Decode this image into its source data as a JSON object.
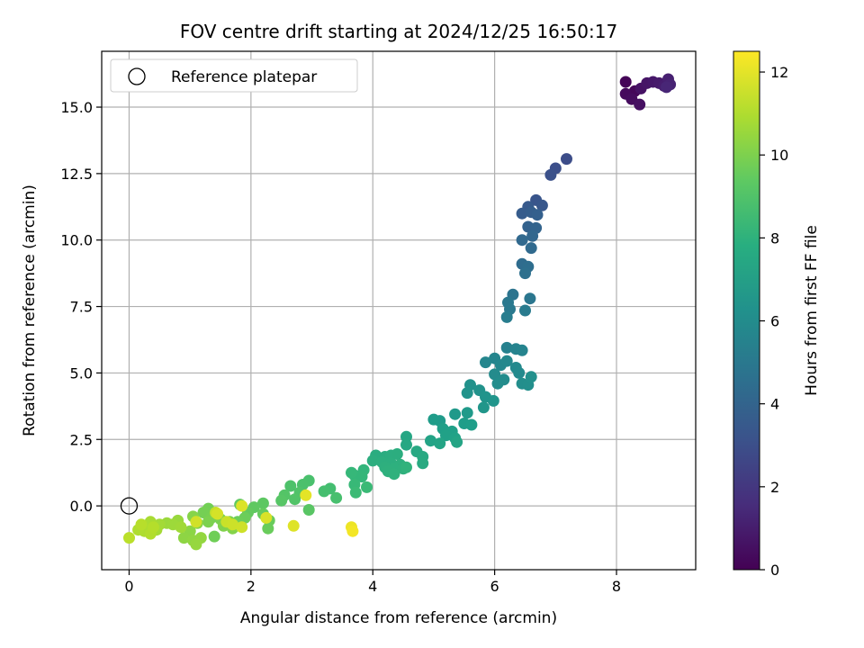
{
  "chart_data": {
    "type": "scatter",
    "title": "FOV centre drift starting at 2024/12/25 16:50:17",
    "xlabel": "Angular distance from reference (arcmin)",
    "ylabel": "Rotation from reference (arcmin)",
    "xlim": [
      -0.45,
      9.3
    ],
    "ylim": [
      -2.4,
      17.1
    ],
    "xticks": [
      0,
      2,
      4,
      6,
      8
    ],
    "xtick_labels": [
      "0",
      "2",
      "4",
      "6",
      "8"
    ],
    "yticks": [
      0.0,
      2.5,
      5.0,
      7.5,
      10.0,
      12.5,
      15.0
    ],
    "ytick_labels": [
      "0.0",
      "2.5",
      "5.0",
      "7.5",
      "10.0",
      "12.5",
      "15.0"
    ],
    "grid": true,
    "legend": {
      "position": "top-left",
      "entries": [
        {
          "label": "Reference platepar",
          "marker": "open-circle"
        }
      ]
    },
    "reference_point": {
      "x": 0,
      "y": 0
    },
    "colorbar": {
      "label": "Hours from first FF file",
      "colormap": "viridis",
      "range": [
        0,
        12.5
      ],
      "ticks": [
        0,
        2,
        4,
        6,
        8,
        10,
        12
      ],
      "tick_labels": [
        "0",
        "2",
        "4",
        "6",
        "8",
        "10",
        "12"
      ]
    },
    "points": [
      {
        "x": 8.15,
        "y": 15.95,
        "c": 0.1
      },
      {
        "x": 8.3,
        "y": 15.6,
        "c": 0.2
      },
      {
        "x": 8.15,
        "y": 15.5,
        "c": 0.3
      },
      {
        "x": 8.25,
        "y": 15.3,
        "c": 0.4
      },
      {
        "x": 8.38,
        "y": 15.1,
        "c": 0.5
      },
      {
        "x": 8.4,
        "y": 15.7,
        "c": 0.6
      },
      {
        "x": 8.5,
        "y": 15.9,
        "c": 0.7
      },
      {
        "x": 8.6,
        "y": 15.95,
        "c": 0.8
      },
      {
        "x": 8.7,
        "y": 15.9,
        "c": 0.9
      },
      {
        "x": 8.78,
        "y": 15.8,
        "c": 1.0
      },
      {
        "x": 8.85,
        "y": 16.05,
        "c": 1.1
      },
      {
        "x": 8.88,
        "y": 15.85,
        "c": 1.2
      },
      {
        "x": 8.82,
        "y": 15.75,
        "c": 1.3
      },
      {
        "x": 7.18,
        "y": 13.05,
        "c": 2.9
      },
      {
        "x": 7.0,
        "y": 12.7,
        "c": 3.0
      },
      {
        "x": 6.92,
        "y": 12.45,
        "c": 3.1
      },
      {
        "x": 6.68,
        "y": 11.5,
        "c": 3.3
      },
      {
        "x": 6.78,
        "y": 11.3,
        "c": 3.4
      },
      {
        "x": 6.55,
        "y": 11.25,
        "c": 3.5
      },
      {
        "x": 6.45,
        "y": 11.0,
        "c": 3.6
      },
      {
        "x": 6.6,
        "y": 11.05,
        "c": 3.7
      },
      {
        "x": 6.7,
        "y": 10.95,
        "c": 3.8
      },
      {
        "x": 6.55,
        "y": 10.5,
        "c": 3.9
      },
      {
        "x": 6.68,
        "y": 10.45,
        "c": 4.0
      },
      {
        "x": 6.62,
        "y": 10.15,
        "c": 4.1
      },
      {
        "x": 6.45,
        "y": 10.0,
        "c": 4.2
      },
      {
        "x": 6.6,
        "y": 9.7,
        "c": 4.3
      },
      {
        "x": 6.45,
        "y": 9.1,
        "c": 4.4
      },
      {
        "x": 6.55,
        "y": 9.0,
        "c": 4.5
      },
      {
        "x": 6.5,
        "y": 8.75,
        "c": 4.6
      },
      {
        "x": 6.3,
        "y": 7.95,
        "c": 4.8
      },
      {
        "x": 6.58,
        "y": 7.8,
        "c": 4.9
      },
      {
        "x": 6.22,
        "y": 7.65,
        "c": 5.0
      },
      {
        "x": 6.25,
        "y": 7.4,
        "c": 5.1
      },
      {
        "x": 6.5,
        "y": 7.35,
        "c": 5.2
      },
      {
        "x": 6.2,
        "y": 7.1,
        "c": 5.3
      },
      {
        "x": 6.2,
        "y": 5.95,
        "c": 5.5
      },
      {
        "x": 6.35,
        "y": 5.9,
        "c": 5.6
      },
      {
        "x": 6.45,
        "y": 5.85,
        "c": 5.65
      },
      {
        "x": 6.0,
        "y": 5.55,
        "c": 5.7
      },
      {
        "x": 5.85,
        "y": 5.4,
        "c": 5.75
      },
      {
        "x": 6.1,
        "y": 5.3,
        "c": 5.8
      },
      {
        "x": 6.2,
        "y": 5.45,
        "c": 5.85
      },
      {
        "x": 6.35,
        "y": 5.2,
        "c": 5.9
      },
      {
        "x": 6.4,
        "y": 5.0,
        "c": 5.95
      },
      {
        "x": 6.0,
        "y": 4.95,
        "c": 6.0
      },
      {
        "x": 6.15,
        "y": 4.75,
        "c": 6.05
      },
      {
        "x": 6.05,
        "y": 4.6,
        "c": 6.1
      },
      {
        "x": 6.45,
        "y": 4.6,
        "c": 6.15
      },
      {
        "x": 6.55,
        "y": 4.55,
        "c": 6.2
      },
      {
        "x": 6.6,
        "y": 4.85,
        "c": 6.25
      },
      {
        "x": 5.6,
        "y": 4.55,
        "c": 6.3
      },
      {
        "x": 5.75,
        "y": 4.35,
        "c": 6.35
      },
      {
        "x": 5.55,
        "y": 4.25,
        "c": 6.4
      },
      {
        "x": 5.85,
        "y": 4.1,
        "c": 6.45
      },
      {
        "x": 5.98,
        "y": 3.95,
        "c": 6.5
      },
      {
        "x": 5.82,
        "y": 3.7,
        "c": 6.55
      },
      {
        "x": 5.35,
        "y": 3.45,
        "c": 6.7
      },
      {
        "x": 5.55,
        "y": 3.5,
        "c": 6.75
      },
      {
        "x": 5.1,
        "y": 3.2,
        "c": 6.8
      },
      {
        "x": 5.0,
        "y": 3.25,
        "c": 6.85
      },
      {
        "x": 5.5,
        "y": 3.1,
        "c": 6.9
      },
      {
        "x": 5.62,
        "y": 3.05,
        "c": 6.95
      },
      {
        "x": 5.15,
        "y": 2.9,
        "c": 7.0
      },
      {
        "x": 5.3,
        "y": 2.8,
        "c": 7.05
      },
      {
        "x": 5.2,
        "y": 2.65,
        "c": 7.1
      },
      {
        "x": 5.35,
        "y": 2.55,
        "c": 7.15
      },
      {
        "x": 4.95,
        "y": 2.45,
        "c": 7.2
      },
      {
        "x": 5.1,
        "y": 2.35,
        "c": 7.25
      },
      {
        "x": 5.38,
        "y": 2.4,
        "c": 7.3
      },
      {
        "x": 4.55,
        "y": 2.6,
        "c": 7.4
      },
      {
        "x": 4.55,
        "y": 2.3,
        "c": 7.45
      },
      {
        "x": 4.72,
        "y": 2.05,
        "c": 7.5
      },
      {
        "x": 4.82,
        "y": 1.85,
        "c": 7.55
      },
      {
        "x": 4.82,
        "y": 1.6,
        "c": 7.6
      },
      {
        "x": 4.05,
        "y": 1.9,
        "c": 7.7
      },
      {
        "x": 4.2,
        "y": 1.85,
        "c": 7.72
      },
      {
        "x": 4.3,
        "y": 1.9,
        "c": 7.75
      },
      {
        "x": 4.4,
        "y": 1.95,
        "c": 7.78
      },
      {
        "x": 4.0,
        "y": 1.7,
        "c": 7.8
      },
      {
        "x": 4.15,
        "y": 1.65,
        "c": 7.82
      },
      {
        "x": 4.3,
        "y": 1.6,
        "c": 7.85
      },
      {
        "x": 4.45,
        "y": 1.55,
        "c": 7.88
      },
      {
        "x": 4.2,
        "y": 1.45,
        "c": 7.9
      },
      {
        "x": 4.35,
        "y": 1.4,
        "c": 7.92
      },
      {
        "x": 4.5,
        "y": 1.4,
        "c": 7.95
      },
      {
        "x": 4.25,
        "y": 1.3,
        "c": 7.97
      },
      {
        "x": 4.35,
        "y": 1.2,
        "c": 8.0
      },
      {
        "x": 4.55,
        "y": 1.45,
        "c": 8.05
      },
      {
        "x": 3.85,
        "y": 1.35,
        "c": 8.2
      },
      {
        "x": 3.7,
        "y": 1.15,
        "c": 8.25
      },
      {
        "x": 3.82,
        "y": 1.1,
        "c": 8.3
      },
      {
        "x": 3.65,
        "y": 1.25,
        "c": 8.35
      },
      {
        "x": 3.7,
        "y": 0.8,
        "c": 8.4
      },
      {
        "x": 3.9,
        "y": 0.7,
        "c": 8.45
      },
      {
        "x": 3.72,
        "y": 0.5,
        "c": 8.5
      },
      {
        "x": 3.3,
        "y": 0.65,
        "c": 8.7
      },
      {
        "x": 3.2,
        "y": 0.55,
        "c": 8.75
      },
      {
        "x": 3.4,
        "y": 0.3,
        "c": 8.8
      },
      {
        "x": 2.95,
        "y": 0.95,
        "c": 8.85
      },
      {
        "x": 2.85,
        "y": 0.8,
        "c": 8.9
      },
      {
        "x": 2.65,
        "y": 0.75,
        "c": 8.95
      },
      {
        "x": 2.8,
        "y": 0.5,
        "c": 9.0
      },
      {
        "x": 2.72,
        "y": 0.25,
        "c": 9.05
      },
      {
        "x": 2.55,
        "y": 0.4,
        "c": 9.1
      },
      {
        "x": 2.5,
        "y": 0.2,
        "c": 9.15
      },
      {
        "x": 2.95,
        "y": -0.15,
        "c": 9.2
      },
      {
        "x": 2.2,
        "y": 0.1,
        "c": 9.3
      },
      {
        "x": 2.05,
        "y": -0.05,
        "c": 9.35
      },
      {
        "x": 1.82,
        "y": 0.05,
        "c": 9.4
      },
      {
        "x": 1.95,
        "y": -0.25,
        "c": 9.45
      },
      {
        "x": 2.2,
        "y": -0.3,
        "c": 9.5
      },
      {
        "x": 2.3,
        "y": -0.55,
        "c": 9.55
      },
      {
        "x": 2.28,
        "y": -0.85,
        "c": 9.6
      },
      {
        "x": 1.9,
        "y": -0.45,
        "c": 9.65
      },
      {
        "x": 1.78,
        "y": -0.6,
        "c": 9.7
      },
      {
        "x": 1.4,
        "y": -1.15,
        "c": 9.75
      },
      {
        "x": 1.3,
        "y": -0.1,
        "c": 9.8
      },
      {
        "x": 1.22,
        "y": -0.25,
        "c": 9.85
      },
      {
        "x": 1.35,
        "y": -0.45,
        "c": 9.9
      },
      {
        "x": 1.5,
        "y": -0.5,
        "c": 9.95
      },
      {
        "x": 1.3,
        "y": -0.6,
        "c": 10.0
      },
      {
        "x": 1.65,
        "y": -0.6,
        "c": 10.05
      },
      {
        "x": 1.55,
        "y": -0.75,
        "c": 10.1
      },
      {
        "x": 1.7,
        "y": -0.85,
        "c": 10.15
      },
      {
        "x": 1.05,
        "y": -0.4,
        "c": 10.2
      },
      {
        "x": 1.12,
        "y": -0.65,
        "c": 10.25
      },
      {
        "x": 1.0,
        "y": -0.95,
        "c": 10.3
      },
      {
        "x": 0.9,
        "y": -1.2,
        "c": 10.35
      },
      {
        "x": 1.05,
        "y": -1.3,
        "c": 10.4
      },
      {
        "x": 1.18,
        "y": -1.2,
        "c": 10.45
      },
      {
        "x": 1.1,
        "y": -1.45,
        "c": 10.5
      },
      {
        "x": 0.8,
        "y": -0.55,
        "c": 10.55
      },
      {
        "x": 0.62,
        "y": -0.65,
        "c": 10.6
      },
      {
        "x": 0.72,
        "y": -0.7,
        "c": 10.65
      },
      {
        "x": 0.85,
        "y": -0.8,
        "c": 10.7
      },
      {
        "x": 0.5,
        "y": -0.7,
        "c": 10.75
      },
      {
        "x": 0.45,
        "y": -0.9,
        "c": 10.8
      },
      {
        "x": 0.35,
        "y": -0.6,
        "c": 10.85
      },
      {
        "x": 0.3,
        "y": -0.75,
        "c": 10.9
      },
      {
        "x": 0.25,
        "y": -0.95,
        "c": 10.95
      },
      {
        "x": 0.15,
        "y": -0.9,
        "c": 11.0
      },
      {
        "x": 0.35,
        "y": -1.05,
        "c": 11.05
      },
      {
        "x": 0.4,
        "y": -0.8,
        "c": 11.1
      },
      {
        "x": 0.2,
        "y": -0.7,
        "c": 11.15
      },
      {
        "x": 0.0,
        "y": -1.2,
        "c": 11.2
      },
      {
        "x": 1.42,
        "y": -0.25,
        "c": 11.4
      },
      {
        "x": 1.6,
        "y": -0.6,
        "c": 11.5
      },
      {
        "x": 1.7,
        "y": -0.7,
        "c": 11.55
      },
      {
        "x": 1.85,
        "y": -0.8,
        "c": 11.6
      },
      {
        "x": 1.1,
        "y": -0.6,
        "c": 11.65
      },
      {
        "x": 1.45,
        "y": -0.3,
        "c": 11.7
      },
      {
        "x": 2.25,
        "y": -0.45,
        "c": 11.8
      },
      {
        "x": 1.85,
        "y": 0.0,
        "c": 11.85
      },
      {
        "x": 2.7,
        "y": -0.75,
        "c": 11.9
      },
      {
        "x": 2.9,
        "y": 0.4,
        "c": 12.0
      },
      {
        "x": 3.65,
        "y": -0.8,
        "c": 12.2
      },
      {
        "x": 3.67,
        "y": -0.95,
        "c": 12.3
      }
    ]
  }
}
